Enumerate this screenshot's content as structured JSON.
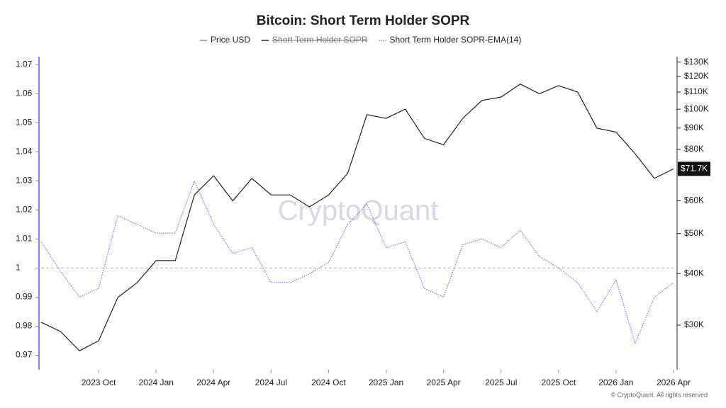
{
  "chart_data": {
    "type": "line",
    "title": "Bitcoin: Short Term Holder SOPR",
    "watermark": "CryptoQuant",
    "footer": "© CryptoQuant. All rights reserved",
    "x": [
      "2023-07",
      "2023-08",
      "2023-09",
      "2023-10",
      "2023-11",
      "2023-12",
      "2024-01",
      "2024-02",
      "2024-03",
      "2024-04",
      "2024-05",
      "2024-06",
      "2024-07",
      "2024-08",
      "2024-09",
      "2024-10",
      "2024-11",
      "2024-12",
      "2025-01",
      "2025-02",
      "2025-03",
      "2025-04",
      "2025-05",
      "2025-06",
      "2025-07",
      "2025-08",
      "2025-09",
      "2025-10",
      "2025-11",
      "2025-12",
      "2026-01",
      "2026-02",
      "2026-03",
      "2026-04"
    ],
    "xlim": [
      "2023-07",
      "2026-04"
    ],
    "xticks": [
      {
        "value": "2023-10",
        "label": "2023 Oct"
      },
      {
        "value": "2024-01",
        "label": "2024 Jan"
      },
      {
        "value": "2024-04",
        "label": "2024 Apr"
      },
      {
        "value": "2024-07",
        "label": "2024 Jul"
      },
      {
        "value": "2024-10",
        "label": "2024 Oct"
      },
      {
        "value": "2025-01",
        "label": "2025 Jan"
      },
      {
        "value": "2025-04",
        "label": "2025 Apr"
      },
      {
        "value": "2025-07",
        "label": "2025 Jul"
      },
      {
        "value": "2025-10",
        "label": "2025 Oct"
      },
      {
        "value": "2026-01",
        "label": "2026 Jan"
      },
      {
        "value": "2026-04",
        "label": "2026 Apr"
      }
    ],
    "ylim": [
      0.965,
      1.0727
    ],
    "yticks": [
      0.97,
      0.98,
      0.99,
      1,
      1.01,
      1.02,
      1.03,
      1.04,
      1.05,
      1.06,
      1.07
    ],
    "baseline": 1,
    "y2lim": [
      23400,
      134000
    ],
    "y2_log": true,
    "y2ticks": [
      {
        "value": 30000,
        "label": "$30K"
      },
      {
        "value": 40000,
        "label": "$40K"
      },
      {
        "value": 50000,
        "label": "$50K"
      },
      {
        "value": 60000,
        "label": "$60K"
      },
      {
        "value": 70000,
        "label": "$70K"
      },
      {
        "value": 80000,
        "label": "$80K"
      },
      {
        "value": 90000,
        "label": "$90K"
      },
      {
        "value": 100000,
        "label": "$100K"
      },
      {
        "value": 110000,
        "label": "$110K"
      },
      {
        "value": 120000,
        "label": "$120K"
      },
      {
        "value": 130000,
        "label": "$130K"
      }
    ],
    "price_marker": {
      "value": 71700,
      "label": "$71.7K"
    },
    "series": [
      {
        "name": "Price USD",
        "color": "#222222",
        "legend_color": "#888888",
        "axis": "y2",
        "values": [
          30500,
          29000,
          26000,
          27500,
          35000,
          38000,
          43000,
          43000,
          62000,
          69000,
          60000,
          68000,
          62000,
          62000,
          58000,
          62000,
          70000,
          97000,
          95000,
          100000,
          85000,
          82000,
          95000,
          105000,
          107000,
          115000,
          109000,
          114000,
          110000,
          90000,
          88000,
          78000,
          68000,
          71700
        ]
      },
      {
        "name": "Short Term Holder SOPR",
        "color": "#222222",
        "hidden": true
      },
      {
        "name": "Short Term Holder SOPR-EMA(14)",
        "color": "#7b7bf0",
        "dashed": true,
        "values": [
          1.009,
          0.999,
          0.99,
          0.993,
          1.018,
          1.015,
          1.012,
          1.012,
          1.03,
          1.015,
          1.005,
          1.007,
          0.995,
          0.995,
          0.998,
          1.002,
          1.015,
          1.022,
          1.007,
          1.009,
          0.993,
          0.99,
          1.008,
          1.01,
          1.007,
          1.013,
          1.004,
          1.0,
          0.995,
          0.985,
          0.996,
          0.974,
          0.99,
          0.995
        ]
      }
    ]
  }
}
